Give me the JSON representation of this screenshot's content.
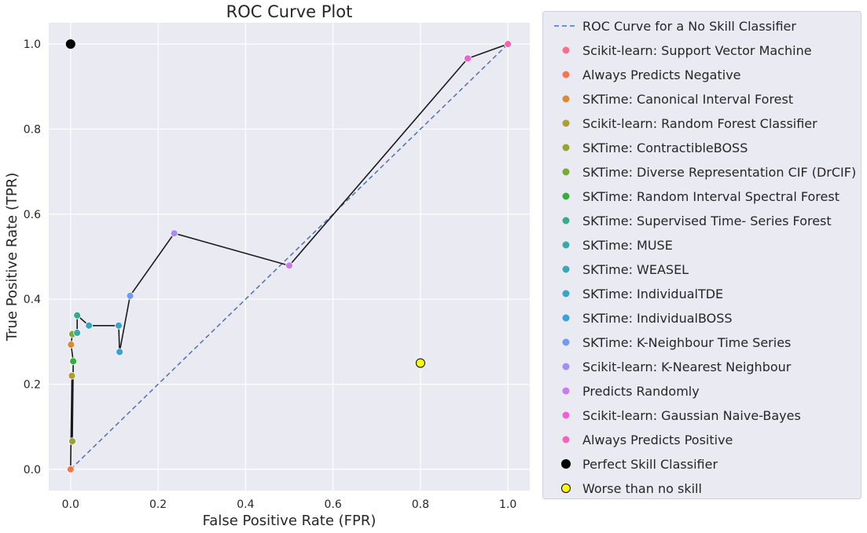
{
  "chart_data": {
    "type": "scatter",
    "title": "ROC Curve Plot",
    "xlabel": "False Positive Rate (FPR)",
    "ylabel": "True Positive Rate (TPR)",
    "xlim": [
      -0.05,
      1.05
    ],
    "ylim": [
      -0.05,
      1.05
    ],
    "xticks": [
      "0.0",
      "0.2",
      "0.4",
      "0.6",
      "0.8",
      "1.0"
    ],
    "yticks": [
      "0.0",
      "0.2",
      "0.4",
      "0.6",
      "0.8",
      "1.0"
    ],
    "grid": true,
    "legend_position": "outside-right",
    "no_skill_line": {
      "name": "ROC Curve for a No Skill Classifier",
      "x": [
        0,
        1
      ],
      "y": [
        0,
        1
      ],
      "color": "#4c72b0",
      "style": "dashed"
    },
    "curve_color": "#1a1a1a",
    "points": [
      {
        "name": "Scikit-learn: Support Vector Machine",
        "x": 0.0,
        "y": 0.0,
        "color": "#f77189"
      },
      {
        "name": "Always Predicts Negative",
        "x": 0.0,
        "y": 0.0,
        "color": "#f7754f"
      },
      {
        "name": "SKTime: Canonical Interval Forest",
        "x": 0.001,
        "y": 0.293,
        "color": "#dc8932"
      },
      {
        "name": "Scikit-learn: Random Forest Classifier",
        "x": 0.003,
        "y": 0.22,
        "color": "#ae9d31"
      },
      {
        "name": "SKTime: ContractibleBOSS",
        "x": 0.004,
        "y": 0.066,
        "color": "#97a431"
      },
      {
        "name": "SKTime: Diverse Representation CIF (DrCIF)",
        "x": 0.004,
        "y": 0.318,
        "color": "#77ab31"
      },
      {
        "name": "SKTime: Random Interval Spectral Forest",
        "x": 0.006,
        "y": 0.254,
        "color": "#33b039"
      },
      {
        "name": "SKTime: Supervised Time- Series Forest",
        "x": 0.015,
        "y": 0.362,
        "color": "#36ad8a"
      },
      {
        "name": "SKTime: MUSE",
        "x": 0.015,
        "y": 0.321,
        "color": "#38aaac"
      },
      {
        "name": "SKTime: WEASEL",
        "x": 0.042,
        "y": 0.338,
        "color": "#39a7b9"
      },
      {
        "name": "SKTime: IndividualTDE",
        "x": 0.11,
        "y": 0.338,
        "color": "#3ba3c8"
      },
      {
        "name": "SKTime: IndividualBOSS",
        "x": 0.112,
        "y": 0.276,
        "color": "#3aa0dd"
      },
      {
        "name": "SKTime: K-Neighbour Time Series",
        "x": 0.136,
        "y": 0.408,
        "color": "#6e9bf4"
      },
      {
        "name": "Scikit-learn: K-Nearest Neighbour",
        "x": 0.237,
        "y": 0.555,
        "color": "#a48cf4"
      },
      {
        "name": "Predicts Randomly",
        "x": 0.5,
        "y": 0.479,
        "color": "#cc7af4"
      },
      {
        "name": "Scikit-learn: Gaussian Naive-Bayes",
        "x": 0.908,
        "y": 0.966,
        "color": "#f45cd9"
      },
      {
        "name": "Always Predicts Positive",
        "x": 1.0,
        "y": 1.0,
        "color": "#f565b4"
      }
    ],
    "curve_order": [
      1,
      0,
      3,
      4,
      6,
      2,
      5,
      8,
      7,
      9,
      10,
      11,
      12,
      13,
      14,
      15,
      16
    ],
    "reference_points": [
      {
        "name": "Perfect Skill Classifier",
        "x": 0.0,
        "y": 1.0,
        "color": "#000000"
      },
      {
        "name": "Worse than no skill",
        "x": 0.8,
        "y": 0.25,
        "color": "#ffff00"
      }
    ]
  }
}
